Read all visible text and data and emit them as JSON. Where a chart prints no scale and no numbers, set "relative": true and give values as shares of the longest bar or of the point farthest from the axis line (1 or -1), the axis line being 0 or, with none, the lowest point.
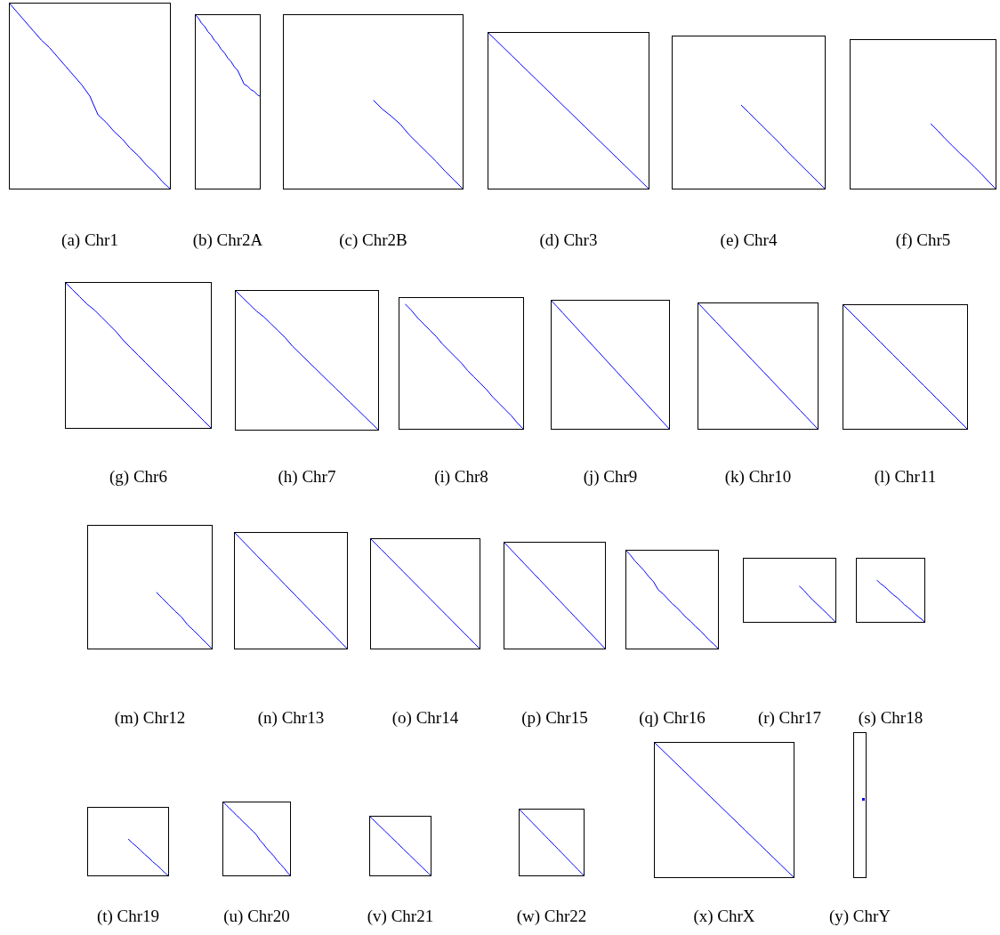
{
  "chart_data": [
    {
      "type": "line",
      "title": "(a) Chr1",
      "categories": [
        null,
        null,
        null,
        null,
        null,
        null,
        null,
        null,
        null,
        null,
        null,
        null,
        null,
        null,
        null,
        null,
        null,
        null,
        null,
        null,
        null
      ],
      "values": [
        1,
        0.95,
        0.9,
        0.85,
        0.8,
        0.76,
        0.71,
        0.66,
        0.61,
        0.56,
        0.5,
        0.4,
        0.36,
        0.31,
        0.27,
        0.22,
        0.18,
        0.13,
        0.09,
        0.04,
        0
      ],
      "color": "#0000ff",
      "relative": true
    },
    {
      "type": "line",
      "title": "(b) Chr2A",
      "categories": [
        null,
        null,
        null,
        null,
        null,
        null,
        null,
        null,
        null,
        null,
        null,
        null,
        null,
        null,
        null,
        null,
        null,
        null,
        null,
        null,
        null
      ],
      "values": [
        1,
        0.98,
        0.95,
        0.93,
        0.9,
        0.88,
        0.85,
        0.83,
        0.8,
        0.78,
        0.75,
        0.73,
        0.7,
        0.68,
        0.64,
        0.6,
        0.59,
        0.57,
        0.56,
        0.54,
        0.53
      ],
      "color": "#0000ff",
      "relative": true
    },
    {
      "type": "line",
      "title": "(c) Chr2B",
      "categories": [
        null,
        null,
        null,
        null,
        null,
        null,
        null,
        null,
        null,
        null,
        null
      ],
      "values": [
        1,
        0.9,
        0.82,
        0.73,
        0.61,
        0.51,
        0.41,
        0.31,
        0.2,
        0.1,
        0
      ],
      "color": "#0000ff",
      "relative": true
    },
    {
      "type": "line",
      "title": "(d) Chr3",
      "categories": [
        null,
        null,
        null,
        null,
        null,
        null,
        null,
        null,
        null,
        null,
        null,
        null,
        null,
        null,
        null,
        null,
        null,
        null,
        null,
        null,
        null
      ],
      "values": [
        1,
        0.95,
        0.9,
        0.85,
        0.8,
        0.75,
        0.7,
        0.65,
        0.6,
        0.55,
        0.5,
        0.45,
        0.4,
        0.35,
        0.3,
        0.25,
        0.2,
        0.15,
        0.1,
        0.05,
        0
      ],
      "color": "#0000ff",
      "relative": true
    },
    {
      "type": "line",
      "title": "(e) Chr4",
      "categories": [
        null,
        null,
        null,
        null,
        null,
        null,
        null,
        null,
        null,
        null,
        null,
        null
      ],
      "values": [
        1,
        0.91,
        0.82,
        0.73,
        0.64,
        0.55,
        0.45,
        0.36,
        0.27,
        0.18,
        0.09,
        0
      ],
      "color": "#0000ff",
      "relative": true
    },
    {
      "type": "line",
      "title": "(f) Chr5",
      "categories": [
        null,
        null,
        null,
        null,
        null,
        null,
        null,
        null,
        null,
        null
      ],
      "values": [
        1,
        0.89,
        0.77,
        0.66,
        0.55,
        0.45,
        0.34,
        0.23,
        0.11,
        0
      ],
      "color": "#0000ff",
      "relative": true
    },
    {
      "type": "line",
      "title": "(g) Chr6",
      "categories": [
        null,
        null,
        null,
        null,
        null,
        null,
        null,
        null,
        null,
        null,
        null,
        null,
        null,
        null,
        null,
        null,
        null,
        null,
        null,
        null,
        null
      ],
      "values": [
        1,
        0.95,
        0.9,
        0.85,
        0.81,
        0.76,
        0.71,
        0.66,
        0.6,
        0.55,
        0.5,
        0.45,
        0.4,
        0.35,
        0.3,
        0.25,
        0.2,
        0.15,
        0.1,
        0.05,
        0
      ],
      "color": "#0000ff",
      "relative": true
    },
    {
      "type": "line",
      "title": "(h) Chr7",
      "categories": [
        null,
        null,
        null,
        null,
        null,
        null,
        null,
        null,
        null,
        null,
        null,
        null,
        null,
        null,
        null,
        null,
        null,
        null,
        null,
        null,
        null
      ],
      "values": [
        1,
        0.95,
        0.9,
        0.85,
        0.81,
        0.76,
        0.71,
        0.66,
        0.6,
        0.55,
        0.5,
        0.45,
        0.4,
        0.35,
        0.3,
        0.25,
        0.2,
        0.15,
        0.1,
        0.05,
        0
      ],
      "color": "#0000ff",
      "relative": true
    },
    {
      "type": "line",
      "title": "(i) Chr8",
      "categories": [
        null,
        null,
        null,
        null,
        null,
        null,
        null,
        null,
        null,
        null,
        null,
        null,
        null,
        null,
        null,
        null,
        null,
        null,
        null,
        null
      ],
      "values": [
        1,
        0.95,
        0.89,
        0.84,
        0.79,
        0.74,
        0.68,
        0.63,
        0.58,
        0.53,
        0.47,
        0.42,
        0.37,
        0.32,
        0.26,
        0.21,
        0.16,
        0.11,
        0.05,
        0
      ],
      "color": "#0000ff",
      "relative": true
    },
    {
      "type": "line",
      "title": "(j) Chr9",
      "categories": [
        null,
        null,
        null,
        null,
        null,
        null,
        null,
        null,
        null,
        null,
        null,
        null,
        null,
        null,
        null,
        null,
        null,
        null,
        null,
        null,
        null
      ],
      "values": [
        1,
        0.95,
        0.9,
        0.85,
        0.8,
        0.75,
        0.7,
        0.65,
        0.6,
        0.55,
        0.5,
        0.45,
        0.4,
        0.35,
        0.3,
        0.25,
        0.2,
        0.15,
        0.1,
        0.05,
        0
      ],
      "color": "#0000ff",
      "relative": true
    },
    {
      "type": "line",
      "title": "(k) Chr10",
      "categories": [
        null,
        null,
        null,
        null,
        null,
        null,
        null,
        null,
        null,
        null,
        null,
        null,
        null,
        null,
        null,
        null,
        null,
        null,
        null,
        null,
        null
      ],
      "values": [
        1,
        0.95,
        0.9,
        0.85,
        0.8,
        0.75,
        0.7,
        0.65,
        0.6,
        0.55,
        0.5,
        0.45,
        0.4,
        0.35,
        0.3,
        0.25,
        0.2,
        0.15,
        0.1,
        0.05,
        0
      ],
      "color": "#0000ff",
      "relative": true
    },
    {
      "type": "line",
      "title": "(l) Chr11",
      "categories": [
        null,
        null,
        null,
        null,
        null,
        null,
        null,
        null,
        null,
        null,
        null,
        null,
        null,
        null,
        null,
        null,
        null,
        null,
        null,
        null,
        null
      ],
      "values": [
        1,
        0.95,
        0.9,
        0.85,
        0.8,
        0.75,
        0.7,
        0.65,
        0.6,
        0.55,
        0.5,
        0.45,
        0.4,
        0.35,
        0.3,
        0.25,
        0.2,
        0.15,
        0.1,
        0.05,
        0
      ],
      "color": "#0000ff",
      "relative": true
    },
    {
      "type": "line",
      "title": "(m) Chr12",
      "categories": [
        null,
        null,
        null,
        null,
        null,
        null,
        null,
        null,
        null,
        null
      ],
      "values": [
        1,
        0.89,
        0.78,
        0.67,
        0.57,
        0.43,
        0.33,
        0.22,
        0.11,
        0
      ],
      "color": "#0000ff",
      "relative": true
    },
    {
      "type": "line",
      "title": "(n) Chr13",
      "categories": [
        null,
        null,
        null,
        null,
        null,
        null,
        null,
        null,
        null,
        null,
        null,
        null,
        null,
        null,
        null,
        null,
        null,
        null,
        null,
        null,
        null
      ],
      "values": [
        1,
        0.95,
        0.9,
        0.85,
        0.8,
        0.75,
        0.7,
        0.65,
        0.6,
        0.55,
        0.5,
        0.45,
        0.4,
        0.35,
        0.3,
        0.25,
        0.2,
        0.15,
        0.1,
        0.05,
        0
      ],
      "color": "#0000ff",
      "relative": true
    },
    {
      "type": "line",
      "title": "(o) Chr14",
      "categories": [
        null,
        null,
        null,
        null,
        null,
        null,
        null,
        null,
        null,
        null,
        null,
        null,
        null,
        null,
        null,
        null,
        null,
        null,
        null,
        null,
        null
      ],
      "values": [
        1,
        0.95,
        0.9,
        0.85,
        0.8,
        0.75,
        0.7,
        0.65,
        0.6,
        0.55,
        0.5,
        0.45,
        0.4,
        0.35,
        0.3,
        0.25,
        0.2,
        0.15,
        0.1,
        0.05,
        0
      ],
      "color": "#0000ff",
      "relative": true
    },
    {
      "type": "line",
      "title": "(p) Chr15",
      "categories": [
        null,
        null,
        null,
        null,
        null,
        null,
        null,
        null,
        null,
        null,
        null,
        null,
        null,
        null,
        null,
        null,
        null,
        null,
        null,
        null,
        null
      ],
      "values": [
        1,
        0.95,
        0.9,
        0.85,
        0.8,
        0.75,
        0.7,
        0.65,
        0.6,
        0.55,
        0.5,
        0.45,
        0.4,
        0.35,
        0.3,
        0.25,
        0.2,
        0.15,
        0.1,
        0.05,
        0
      ],
      "color": "#0000ff",
      "relative": true
    },
    {
      "type": "line",
      "title": "(q) Chr16",
      "categories": [
        null,
        null,
        null,
        null,
        null,
        null,
        null,
        null,
        null,
        null,
        null,
        null,
        null,
        null,
        null,
        null,
        null,
        null,
        null,
        null,
        null
      ],
      "values": [
        1,
        0.95,
        0.89,
        0.84,
        0.79,
        0.73,
        0.68,
        0.6,
        0.56,
        0.51,
        0.46,
        0.42,
        0.37,
        0.32,
        0.28,
        0.23,
        0.19,
        0.14,
        0.09,
        0.05,
        0
      ],
      "color": "#0000ff",
      "relative": true
    },
    {
      "type": "line",
      "title": "(r) Chr17",
      "categories": [
        null,
        null,
        null,
        null,
        null,
        null,
        null,
        null,
        null
      ],
      "values": [
        1,
        0.88,
        0.74,
        0.61,
        0.49,
        0.37,
        0.25,
        0.12,
        0
      ],
      "color": "#0000ff",
      "relative": true
    },
    {
      "type": "line",
      "title": "(s) Chr18",
      "categories": [
        null,
        null,
        null,
        null,
        null,
        null,
        null,
        null,
        null,
        null,
        null,
        null,
        null,
        null,
        null
      ],
      "values": [
        1,
        0.92,
        0.86,
        0.79,
        0.71,
        0.64,
        0.58,
        0.5,
        0.42,
        0.36,
        0.29,
        0.21,
        0.14,
        0.08,
        0
      ],
      "color": "#0000ff",
      "relative": true
    },
    {
      "type": "line",
      "title": "(t) Chr19",
      "categories": [
        null,
        null,
        null,
        null,
        null,
        null,
        null,
        null,
        null,
        null,
        null
      ],
      "values": [
        1,
        0.89,
        0.8,
        0.7,
        0.59,
        0.5,
        0.39,
        0.3,
        0.2,
        0.09,
        0
      ],
      "color": "#0000ff",
      "relative": true
    },
    {
      "type": "line",
      "title": "(u) Chr20",
      "categories": [
        null,
        null,
        null,
        null,
        null,
        null,
        null,
        null,
        null,
        null,
        null,
        null,
        null,
        null,
        null,
        null,
        null,
        null,
        null,
        null,
        null
      ],
      "values": [
        1,
        0.96,
        0.91,
        0.87,
        0.82,
        0.78,
        0.73,
        0.69,
        0.64,
        0.6,
        0.55,
        0.48,
        0.43,
        0.37,
        0.32,
        0.27,
        0.21,
        0.16,
        0.11,
        0.05,
        0
      ],
      "color": "#0000ff",
      "relative": true
    },
    {
      "type": "line",
      "title": "(v) Chr21",
      "categories": [
        null,
        null,
        null,
        null,
        null,
        null,
        null,
        null,
        null,
        null,
        null,
        null,
        null,
        null,
        null,
        null,
        null,
        null,
        null,
        null,
        null
      ],
      "values": [
        1,
        0.95,
        0.9,
        0.85,
        0.8,
        0.75,
        0.7,
        0.65,
        0.6,
        0.55,
        0.5,
        0.45,
        0.4,
        0.35,
        0.3,
        0.25,
        0.2,
        0.15,
        0.1,
        0.05,
        0
      ],
      "color": "#0000ff",
      "relative": true
    },
    {
      "type": "line",
      "title": "(w) Chr22",
      "categories": [
        null,
        null,
        null,
        null,
        null,
        null,
        null,
        null,
        null,
        null,
        null,
        null,
        null,
        null,
        null,
        null,
        null,
        null,
        null,
        null,
        null
      ],
      "values": [
        1,
        0.95,
        0.9,
        0.85,
        0.8,
        0.75,
        0.7,
        0.65,
        0.6,
        0.55,
        0.5,
        0.45,
        0.4,
        0.35,
        0.3,
        0.25,
        0.2,
        0.15,
        0.1,
        0.05,
        0
      ],
      "color": "#0000ff",
      "relative": true
    },
    {
      "type": "line",
      "title": "(x) ChrX",
      "categories": [
        null,
        null,
        null,
        null,
        null,
        null,
        null,
        null,
        null,
        null,
        null,
        null,
        null,
        null,
        null,
        null,
        null,
        null,
        null,
        null,
        null
      ],
      "values": [
        1,
        0.95,
        0.9,
        0.85,
        0.8,
        0.75,
        0.7,
        0.65,
        0.6,
        0.55,
        0.5,
        0.45,
        0.4,
        0.35,
        0.3,
        0.25,
        0.2,
        0.15,
        0.1,
        0.05,
        0
      ],
      "color": "#0000ff",
      "relative": true
    },
    {
      "type": "other",
      "title": "(y) ChrY"
    }
  ]
}
